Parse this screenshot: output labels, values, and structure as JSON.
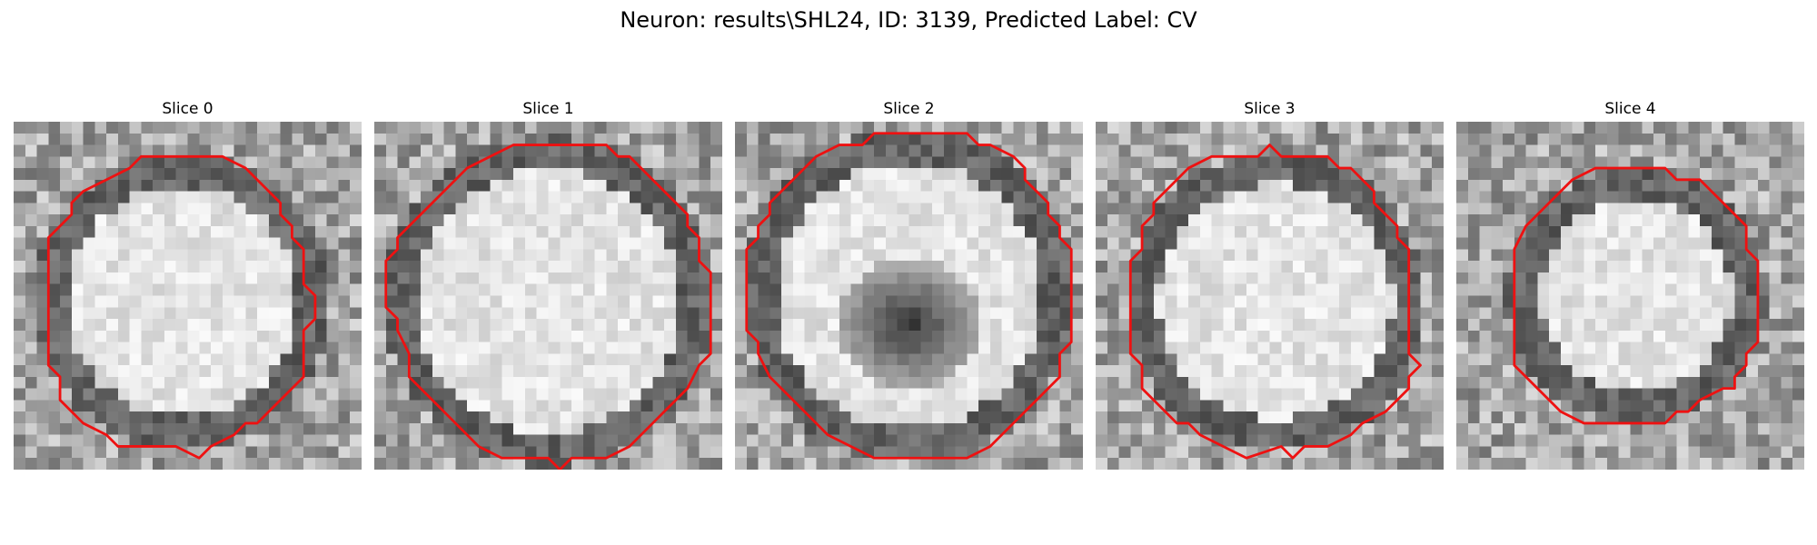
{
  "figure": {
    "title": "Neuron: results\\SHL24, ID: 3139, Predicted Label: CV"
  },
  "panels": [
    {
      "title": "Slice 0",
      "image": "grayscale-em-cell-crop",
      "contour": "red-segmentation-outline"
    },
    {
      "title": "Slice 1",
      "image": "grayscale-em-cell-crop",
      "contour": "red-segmentation-outline"
    },
    {
      "title": "Slice 2",
      "image": "grayscale-em-cell-crop",
      "contour": "red-segmentation-outline"
    },
    {
      "title": "Slice 3",
      "image": "grayscale-em-cell-crop",
      "contour": "red-segmentation-outline"
    },
    {
      "title": "Slice 4",
      "image": "grayscale-em-cell-crop",
      "contour": "red-segmentation-outline"
    }
  ],
  "colors": {
    "contour": "#ee1111",
    "background": "#ffffff"
  }
}
